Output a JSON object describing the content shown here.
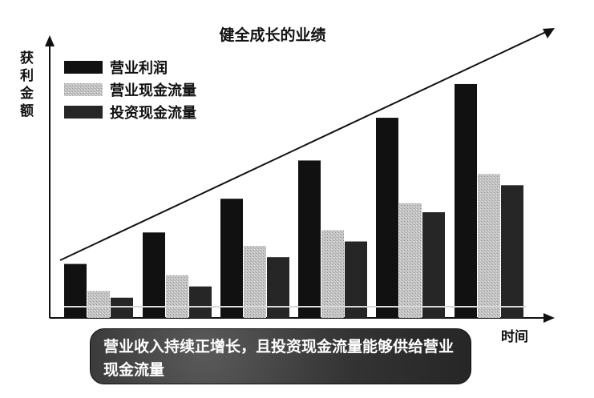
{
  "colors": {
    "series_1": "#111111",
    "series_2": "#bdbdbd",
    "series_3": "#262626",
    "note_bg": "#3a3a3a",
    "note_text": "#ffffff"
  },
  "note": {
    "text": "营业收入持续正增长，且投资现金流量能够供给营业现金流量"
  },
  "chart_data": {
    "type": "bar",
    "title": "健全成长的业绩",
    "xlabel": "时间",
    "ylabel": "获利金额",
    "categories": [
      "",
      "",
      "",
      "",
      "",
      ""
    ],
    "series": [
      {
        "name": "营业利润",
        "values": [
          24,
          38,
          53,
          70,
          89,
          104
        ]
      },
      {
        "name": "营业现金流量",
        "values": [
          12,
          19,
          32,
          39,
          51,
          64
        ]
      },
      {
        "name": "投资现金流量",
        "values": [
          9,
          14,
          27,
          34,
          47,
          59
        ]
      }
    ],
    "trend_arrow": true,
    "ylim": [
      0,
      120
    ],
    "legend_position": "top-left",
    "grid": false,
    "axes_ticks": false
  }
}
